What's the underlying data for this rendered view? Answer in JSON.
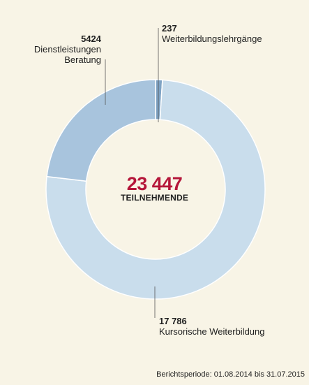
{
  "chart_data": {
    "type": "pie",
    "variant": "donut",
    "total": {
      "value": "23 447",
      "label": "TEILNEHMENDE"
    },
    "slices": [
      {
        "label": "Kursorische Weiterbildung",
        "value": 17786,
        "value_text": "17 786",
        "color": "#c9ddec"
      },
      {
        "label": "Dienstleistungen Beratung",
        "value": 5424,
        "value_text": "5424",
        "color": "#a8c4dd",
        "label_lines": [
          "Dienstleistungen",
          "Beratung"
        ]
      },
      {
        "label": "Weiterbildungslehrgänge",
        "value": 237,
        "value_text": "237",
        "color": "#7fa3c4"
      }
    ],
    "footer": "Berichtsperiode: 01.08.2014 bis 31.07.2015"
  }
}
